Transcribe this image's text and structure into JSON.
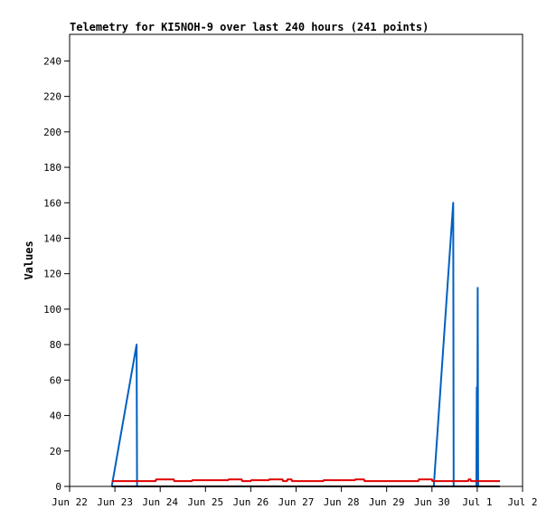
{
  "chart_data": {
    "type": "line",
    "title": "Telemetry for KI5NOH-9 over last 240 hours (241 points)",
    "xlabel": "",
    "ylabel": "Values",
    "x_tick_labels": [
      "Jun 22",
      "Jun 23",
      "Jun 24",
      "Jun 25",
      "Jun 26",
      "Jun 27",
      "Jun 28",
      "Jun 29",
      "Jun 30",
      "Jul 1",
      "Jul 2"
    ],
    "y_ticks": [
      0,
      20,
      40,
      60,
      80,
      100,
      120,
      140,
      160,
      180,
      200,
      220,
      240
    ],
    "xlim_days": [
      0,
      10
    ],
    "ylim": [
      0,
      255
    ],
    "grid": false,
    "series": [
      {
        "color": "#0060c0",
        "points": [
          [
            0.93,
            0
          ],
          [
            1.48,
            80
          ],
          [
            1.49,
            0
          ],
          [
            1.5,
            0
          ],
          [
            8.04,
            0
          ],
          [
            8.47,
            160
          ],
          [
            8.48,
            0
          ],
          [
            8.49,
            0
          ],
          [
            8.98,
            0
          ],
          [
            8.99,
            56
          ],
          [
            9.0,
            0
          ],
          [
            9.01,
            112
          ],
          [
            9.02,
            0
          ],
          [
            9.5,
            0
          ]
        ]
      },
      {
        "color": "#e00000",
        "points": [
          [
            0.93,
            3
          ],
          [
            1.9,
            3
          ],
          [
            1.91,
            4
          ],
          [
            2.3,
            4
          ],
          [
            2.31,
            3
          ],
          [
            2.7,
            3
          ],
          [
            2.71,
            3.5
          ],
          [
            3.5,
            3.5
          ],
          [
            3.51,
            4
          ],
          [
            3.8,
            4
          ],
          [
            3.81,
            3
          ],
          [
            4.0,
            3
          ],
          [
            4.01,
            3.5
          ],
          [
            4.4,
            3.5
          ],
          [
            4.41,
            4
          ],
          [
            4.7,
            4
          ],
          [
            4.71,
            3
          ],
          [
            4.8,
            3
          ],
          [
            4.81,
            4
          ],
          [
            4.9,
            4
          ],
          [
            4.91,
            3
          ],
          [
            5.6,
            3
          ],
          [
            5.61,
            3.5
          ],
          [
            6.3,
            3.5
          ],
          [
            6.31,
            4
          ],
          [
            6.5,
            4
          ],
          [
            6.51,
            3
          ],
          [
            7.7,
            3
          ],
          [
            7.71,
            4
          ],
          [
            8.0,
            4
          ],
          [
            8.01,
            3
          ],
          [
            8.8,
            3
          ],
          [
            8.81,
            4
          ],
          [
            8.85,
            4
          ],
          [
            8.86,
            3
          ],
          [
            9.5,
            3
          ]
        ]
      },
      {
        "color": "#000000",
        "points": [
          [
            0.93,
            0
          ],
          [
            9.5,
            0
          ]
        ]
      }
    ]
  }
}
